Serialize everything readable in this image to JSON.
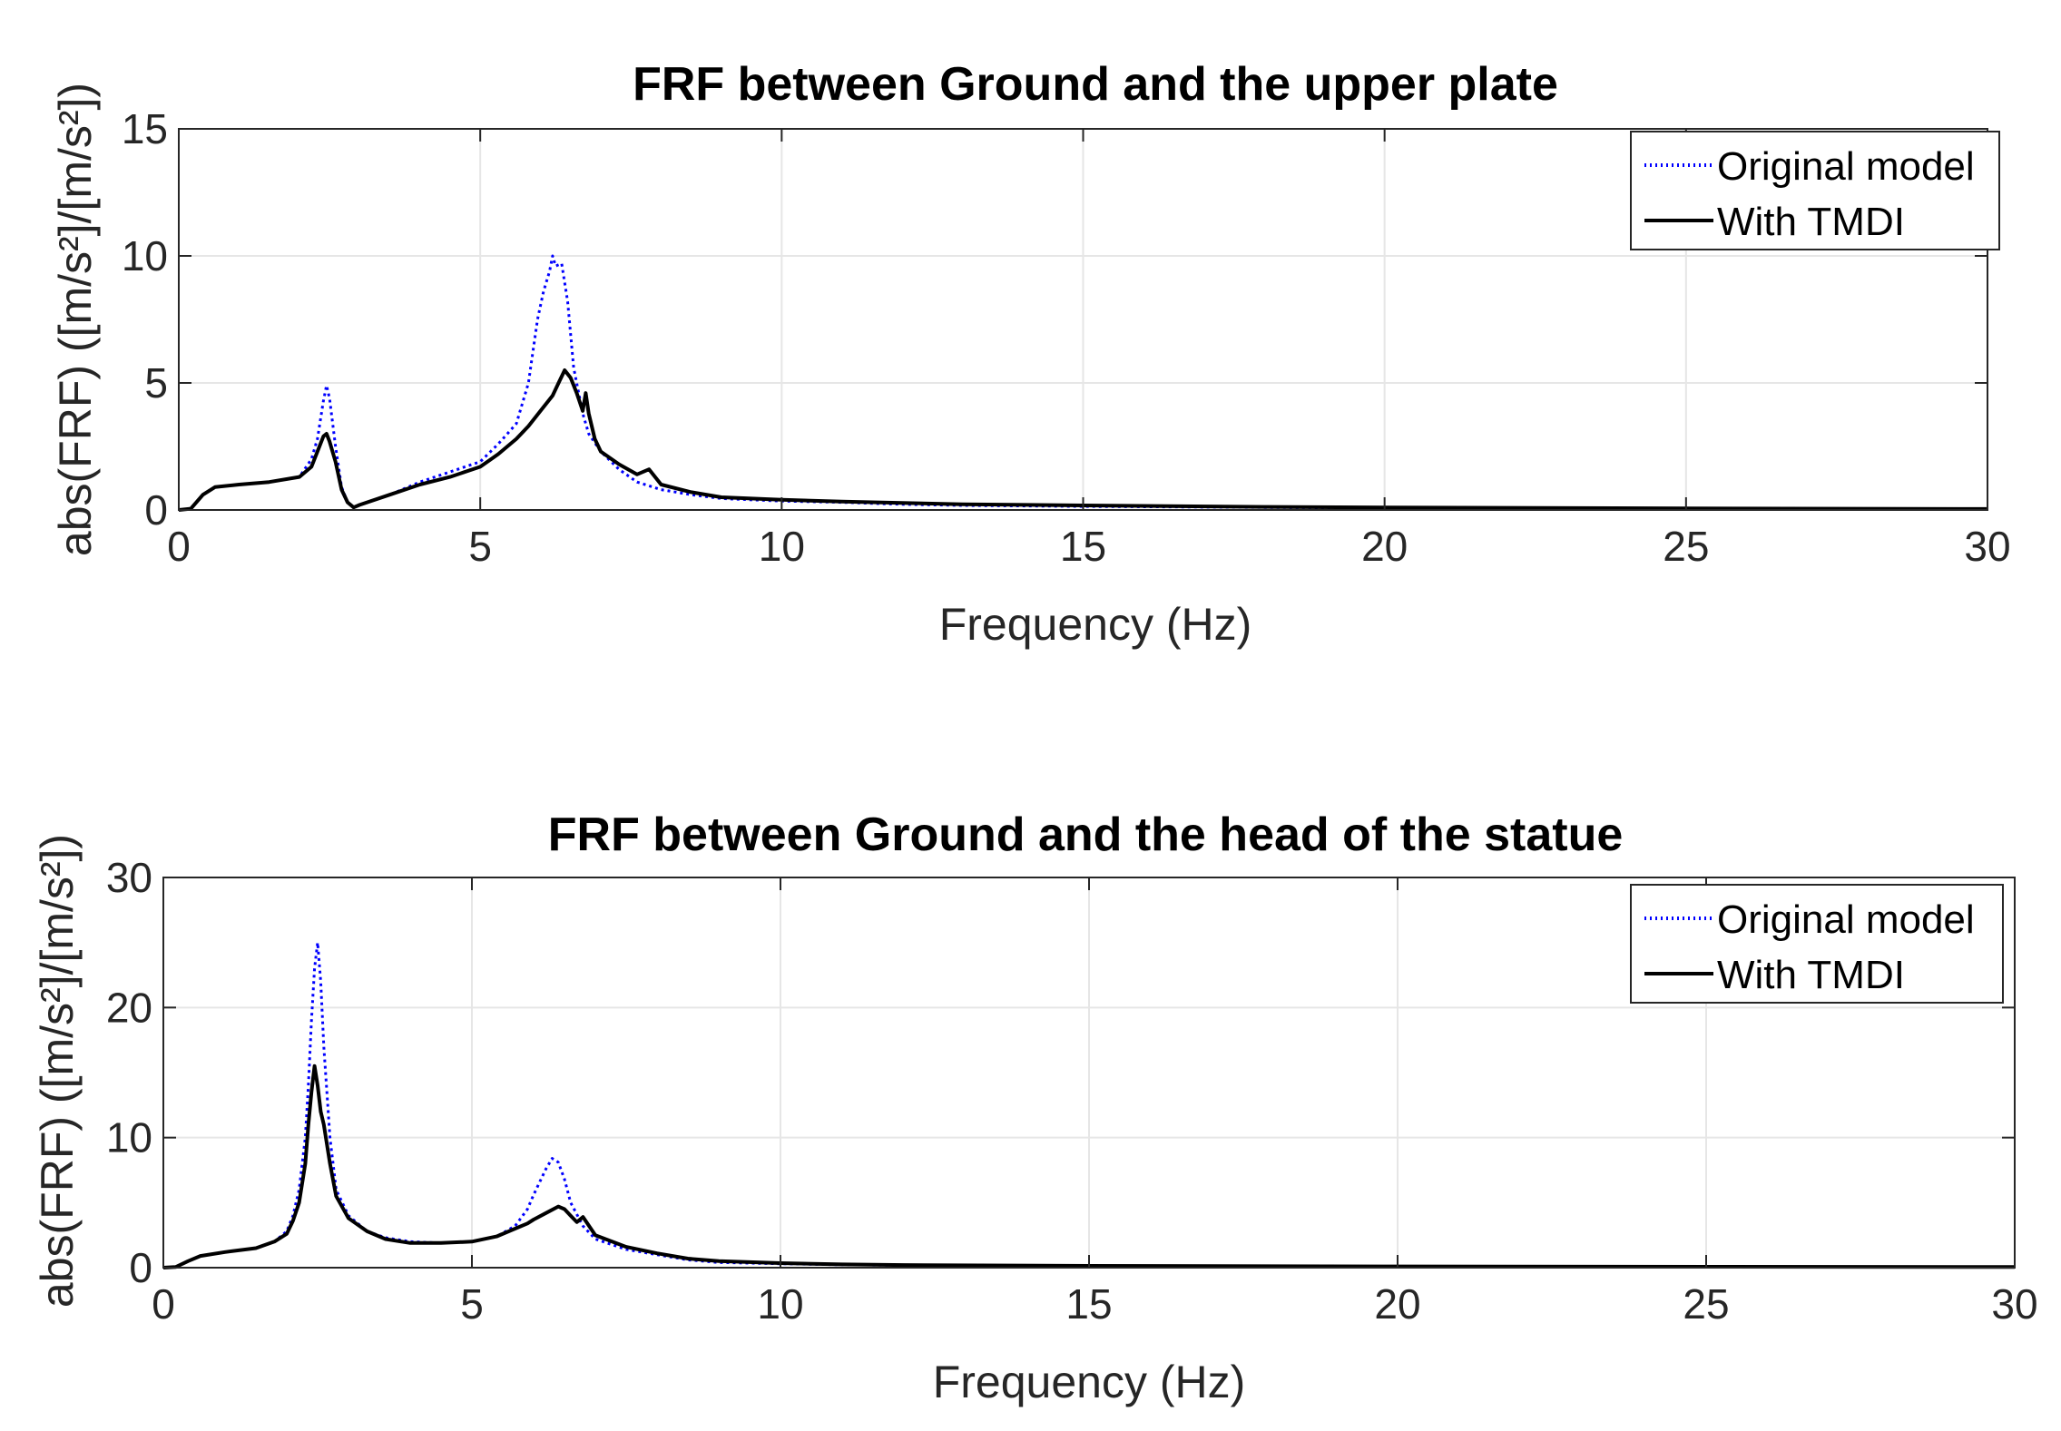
{
  "chart_data": [
    {
      "type": "line",
      "title": "FRF between Ground and the upper plate",
      "xlabel": "Frequency (Hz)",
      "ylabel": "abs(FRF) ([m/s²]/[m/s²])",
      "xlim": [
        0,
        30
      ],
      "ylim": [
        0,
        15
      ],
      "xticks": [
        0,
        5,
        10,
        15,
        20,
        25,
        30
      ],
      "yticks": [
        0,
        5,
        10,
        15
      ],
      "grid": true,
      "legend_position": "top-right",
      "series": [
        {
          "name": "Original model",
          "style": "dotted",
          "color": "#0000ff",
          "x": [
            0,
            0.2,
            0.4,
            0.6,
            1.0,
            1.5,
            2.0,
            2.2,
            2.3,
            2.4,
            2.45,
            2.5,
            2.6,
            2.7,
            2.8,
            2.9,
            3.0,
            3.5,
            4.0,
            4.5,
            5.0,
            5.3,
            5.6,
            5.8,
            5.95,
            6.05,
            6.15,
            6.2,
            6.25,
            6.35,
            6.45,
            6.55,
            6.7,
            6.8,
            7.0,
            7.3,
            7.6,
            8.0,
            8.5,
            9.0,
            10,
            11,
            12,
            13,
            15,
            18,
            20,
            25,
            30
          ],
          "y": [
            0,
            0.05,
            0.6,
            0.9,
            1.0,
            1.1,
            1.3,
            2.0,
            2.8,
            4.3,
            4.9,
            4.4,
            2.5,
            0.9,
            0.3,
            0.1,
            0.2,
            0.6,
            1.1,
            1.5,
            1.9,
            2.6,
            3.4,
            5.0,
            7.5,
            8.6,
            9.4,
            10.0,
            9.6,
            9.7,
            8.2,
            5.6,
            3.8,
            3.0,
            2.3,
            1.6,
            1.1,
            0.8,
            0.6,
            0.45,
            0.35,
            0.3,
            0.22,
            0.18,
            0.14,
            0.1,
            0.08,
            0.05,
            0.03
          ]
        },
        {
          "name": "With TMDI",
          "style": "solid",
          "color": "#000000",
          "x": [
            0,
            0.2,
            0.4,
            0.6,
            1.0,
            1.5,
            2.0,
            2.2,
            2.3,
            2.4,
            2.45,
            2.5,
            2.6,
            2.7,
            2.8,
            2.9,
            3.0,
            3.5,
            4.0,
            4.5,
            5.0,
            5.3,
            5.6,
            5.8,
            6.0,
            6.2,
            6.3,
            6.4,
            6.5,
            6.6,
            6.7,
            6.75,
            6.8,
            6.9,
            7.0,
            7.3,
            7.6,
            7.8,
            8.0,
            8.5,
            9.0,
            10,
            11,
            12,
            13,
            15,
            18,
            20,
            25,
            30
          ],
          "y": [
            0,
            0.05,
            0.6,
            0.9,
            1.0,
            1.1,
            1.3,
            1.7,
            2.3,
            2.9,
            3.0,
            2.7,
            1.9,
            0.8,
            0.3,
            0.1,
            0.2,
            0.6,
            1.0,
            1.3,
            1.7,
            2.2,
            2.8,
            3.3,
            3.9,
            4.5,
            5.0,
            5.5,
            5.2,
            4.6,
            3.9,
            4.6,
            3.8,
            2.8,
            2.3,
            1.8,
            1.4,
            1.6,
            1.0,
            0.7,
            0.5,
            0.4,
            0.33,
            0.28,
            0.22,
            0.18,
            0.12,
            0.1,
            0.06,
            0.04
          ]
        }
      ]
    },
    {
      "type": "line",
      "title": "FRF between Ground and the head of the statue",
      "xlabel": "Frequency (Hz)",
      "ylabel": "abs(FRF) ([m/s²]/[m/s²])",
      "xlim": [
        0,
        30
      ],
      "ylim": [
        0,
        30
      ],
      "xticks": [
        0,
        5,
        10,
        15,
        20,
        25,
        30
      ],
      "yticks": [
        0,
        10,
        20,
        30
      ],
      "grid": true,
      "legend_position": "top-right",
      "series": [
        {
          "name": "Original model",
          "style": "dotted",
          "color": "#0000ff",
          "x": [
            0,
            0.2,
            0.4,
            0.6,
            1.0,
            1.5,
            1.8,
            2.0,
            2.1,
            2.2,
            2.3,
            2.35,
            2.4,
            2.45,
            2.5,
            2.55,
            2.6,
            2.7,
            2.8,
            3.0,
            3.3,
            3.6,
            4.0,
            4.5,
            5.0,
            5.4,
            5.7,
            5.9,
            6.0,
            6.1,
            6.2,
            6.3,
            6.4,
            6.5,
            6.6,
            6.8,
            7.0,
            7.5,
            8.0,
            8.5,
            9.0,
            10,
            11,
            12,
            15,
            20,
            25,
            30
          ],
          "y": [
            0,
            0.05,
            0.5,
            0.9,
            1.2,
            1.5,
            2.0,
            2.8,
            4.0,
            6.0,
            10.0,
            14.0,
            19.0,
            23.0,
            25.0,
            22.0,
            17.0,
            10.0,
            6.0,
            4.0,
            2.8,
            2.3,
            2.0,
            1.9,
            2.0,
            2.4,
            3.2,
            4.5,
            5.6,
            6.6,
            7.6,
            8.4,
            8.1,
            6.8,
            5.0,
            3.2,
            2.2,
            1.4,
            1.0,
            0.6,
            0.4,
            0.3,
            0.22,
            0.18,
            0.12,
            0.08,
            0.06,
            0.04
          ]
        },
        {
          "name": "With TMDI",
          "style": "solid",
          "color": "#000000",
          "x": [
            0,
            0.2,
            0.4,
            0.6,
            1.0,
            1.5,
            1.8,
            2.0,
            2.1,
            2.2,
            2.3,
            2.35,
            2.4,
            2.45,
            2.5,
            2.55,
            2.6,
            2.7,
            2.8,
            3.0,
            3.3,
            3.6,
            4.0,
            4.5,
            5.0,
            5.4,
            5.7,
            5.9,
            6.0,
            6.2,
            6.4,
            6.5,
            6.6,
            6.7,
            6.8,
            7.0,
            7.5,
            8.0,
            8.5,
            9.0,
            10,
            11,
            12,
            15,
            20,
            25,
            30
          ],
          "y": [
            0,
            0.05,
            0.5,
            0.9,
            1.2,
            1.5,
            2.0,
            2.6,
            3.6,
            5.0,
            8.0,
            11.0,
            13.5,
            15.5,
            14.0,
            12.0,
            11.0,
            8.0,
            5.5,
            3.8,
            2.8,
            2.2,
            1.9,
            1.9,
            2.0,
            2.4,
            3.0,
            3.4,
            3.7,
            4.2,
            4.7,
            4.5,
            4.0,
            3.5,
            3.9,
            2.5,
            1.6,
            1.1,
            0.7,
            0.5,
            0.35,
            0.25,
            0.2,
            0.14,
            0.1,
            0.07,
            0.05
          ]
        }
      ]
    }
  ]
}
